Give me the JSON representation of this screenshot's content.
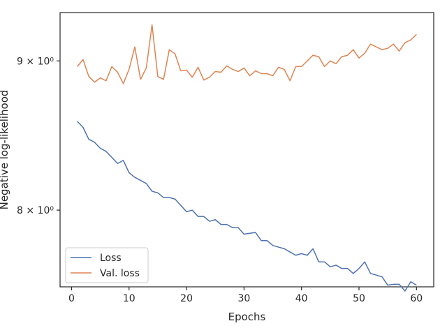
{
  "chart_data": {
    "type": "line",
    "title": "",
    "xlabel": "Epochs",
    "ylabel": "Negative log-likelihood",
    "yscale": "log",
    "xlim": [
      -2,
      63
    ],
    "ylim": [
      7.53,
      9.35
    ],
    "x_ticks": [
      0,
      10,
      20,
      30,
      40,
      50,
      60
    ],
    "x_tick_labels": [
      "0",
      "10",
      "20",
      "30",
      "40",
      "50",
      "60"
    ],
    "y_ticks": [
      8,
      9
    ],
    "y_tick_labels": [
      "8 × 10⁰",
      "9 × 10⁰"
    ],
    "grid": false,
    "legend_position": "lower-left",
    "x": [
      1,
      2,
      3,
      4,
      5,
      6,
      7,
      8,
      9,
      10,
      11,
      12,
      13,
      14,
      15,
      16,
      17,
      18,
      19,
      20,
      21,
      22,
      23,
      24,
      25,
      26,
      27,
      28,
      29,
      30,
      31,
      32,
      33,
      34,
      35,
      36,
      37,
      38,
      39,
      40,
      41,
      42,
      43,
      44,
      45,
      46,
      47,
      48,
      49,
      50,
      51,
      52,
      53,
      54,
      55,
      56,
      57,
      58,
      59,
      60
    ],
    "series": [
      {
        "name": "Loss",
        "color": "#4c72b0",
        "values": [
          8.58,
          8.54,
          8.46,
          8.44,
          8.4,
          8.38,
          8.34,
          8.3,
          8.32,
          8.24,
          8.21,
          8.19,
          8.17,
          8.12,
          8.11,
          8.08,
          8.08,
          8.07,
          8.03,
          7.99,
          8.0,
          7.96,
          7.96,
          7.93,
          7.94,
          7.91,
          7.91,
          7.89,
          7.89,
          7.85,
          7.855,
          7.86,
          7.81,
          7.81,
          7.78,
          7.77,
          7.76,
          7.74,
          7.72,
          7.73,
          7.72,
          7.76,
          7.68,
          7.68,
          7.65,
          7.66,
          7.64,
          7.64,
          7.61,
          7.64,
          7.68,
          7.61,
          7.6,
          7.59,
          7.54,
          7.545,
          7.545,
          7.505,
          7.56,
          7.54
        ]
      },
      {
        "name": "Val. loss",
        "color": "#dd8452",
        "values": [
          8.96,
          9.01,
          8.89,
          8.85,
          8.88,
          8.86,
          8.96,
          8.92,
          8.84,
          8.94,
          9.1,
          8.87,
          8.95,
          9.26,
          8.89,
          8.87,
          9.08,
          9.05,
          8.93,
          8.935,
          8.885,
          8.955,
          8.865,
          8.885,
          8.925,
          8.92,
          8.965,
          8.94,
          8.925,
          8.95,
          8.895,
          8.93,
          8.91,
          8.91,
          8.895,
          8.955,
          8.94,
          8.86,
          8.96,
          8.96,
          9.0,
          9.04,
          9.03,
          8.96,
          9.0,
          8.98,
          9.03,
          9.04,
          9.08,
          9.02,
          9.055,
          9.12,
          9.1,
          9.08,
          9.09,
          9.12,
          9.07,
          9.13,
          9.15,
          9.19
        ]
      }
    ]
  }
}
